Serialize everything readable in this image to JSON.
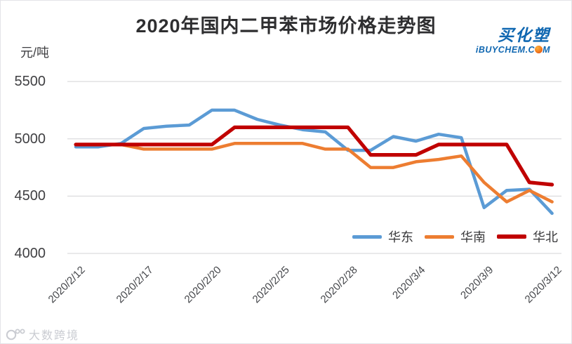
{
  "title": "2020年国内二甲苯市场价格走势图",
  "unit_label": "元/吨",
  "brand": {
    "cn": "买化塑",
    "en_prefix": "iBUYCHEM.C",
    "en_suffix": "M"
  },
  "watermark_text": "大数跨境",
  "chart_data": {
    "type": "line",
    "title": "2020年国内二甲苯市场价格走势图",
    "ylabel": "元/吨",
    "ylim": [
      4000,
      5500
    ],
    "y_ticks": [
      5500,
      5000,
      4500,
      4000
    ],
    "grid": true,
    "legend_position": "bottom-right-inside",
    "x": [
      "2020/2/12",
      "2020/2/13",
      "2020/2/14",
      "2020/2/17",
      "2020/2/18",
      "2020/2/19",
      "2020/2/20",
      "2020/2/21",
      "2020/2/24",
      "2020/2/25",
      "2020/2/26",
      "2020/2/27",
      "2020/2/28",
      "2020/3/2",
      "2020/3/3",
      "2020/3/4",
      "2020/3/5",
      "2020/3/6",
      "2020/3/9",
      "2020/3/10",
      "2020/3/11",
      "2020/3/12"
    ],
    "x_tick_labels": [
      "2020/2/12",
      "2020/2/17",
      "2020/2/20",
      "2020/2/25",
      "2020/2/28",
      "2020/3/4",
      "2020/3/9",
      "2020/3/12"
    ],
    "x_tick_every": 3,
    "series": [
      {
        "name": "华东",
        "color": "#5B9BD5",
        "values": [
          4930,
          4930,
          4960,
          5090,
          5110,
          5120,
          5250,
          5250,
          5170,
          5120,
          5080,
          5060,
          4900,
          4900,
          5020,
          4980,
          5040,
          5010,
          4400,
          4550,
          4560,
          4350
        ]
      },
      {
        "name": "华南",
        "color": "#ED7D31",
        "values": [
          4950,
          4950,
          4950,
          4910,
          4910,
          4910,
          4910,
          4960,
          4960,
          4960,
          4960,
          4910,
          4910,
          4750,
          4750,
          4800,
          4820,
          4850,
          4620,
          4450,
          4550,
          4450
        ]
      },
      {
        "name": "华北",
        "color": "#C00000",
        "values": [
          4950,
          4950,
          4950,
          4950,
          4950,
          4950,
          4950,
          5100,
          5100,
          5100,
          5100,
          5100,
          5100,
          4860,
          4860,
          4860,
          4950,
          4950,
          4950,
          4950,
          4620,
          4600
        ]
      }
    ]
  }
}
